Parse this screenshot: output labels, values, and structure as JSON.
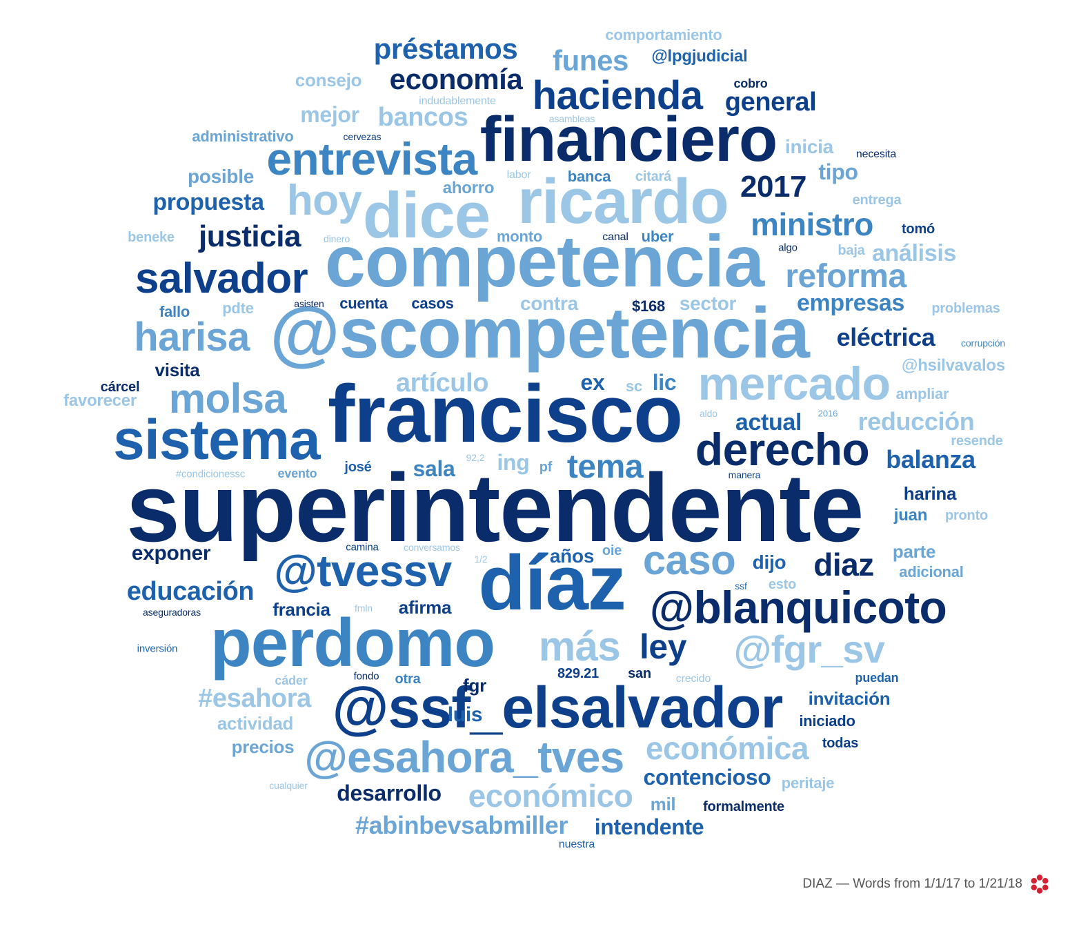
{
  "caption": "DIAZ — Words from 1/1/17 to 1/21/18",
  "logo_icon": "red-flower-logo-icon",
  "colors": {
    "navy": "#0a2c6b",
    "dark_blue": "#0d3f8a",
    "blue": "#1e62ad",
    "mid_blue": "#3d84c3",
    "light_blue": "#6aa5d6",
    "pale_blue": "#9cc6e6",
    "logo_red": "#d42030"
  },
  "words": [
    {
      "text": "superintendente",
      "weight": 10,
      "shade": "navy"
    },
    {
      "text": "francisco",
      "weight": 9,
      "shade": "dark_blue"
    },
    {
      "text": "@scompetencia",
      "weight": 9,
      "shade": "light_blue"
    },
    {
      "text": "competencia",
      "weight": 9,
      "shade": "light_blue"
    },
    {
      "text": "díaz",
      "weight": 9,
      "shade": "blue"
    },
    {
      "text": "perdomo",
      "weight": 8,
      "shade": "mid_blue"
    },
    {
      "text": "@ssf_elsalvador",
      "weight": 8,
      "shade": "dark_blue"
    },
    {
      "text": "financiero",
      "weight": 8,
      "shade": "navy"
    },
    {
      "text": "ricardo",
      "weight": 8,
      "shade": "pale_blue"
    },
    {
      "text": "dice",
      "weight": 8,
      "shade": "pale_blue"
    },
    {
      "text": "sistema",
      "weight": 7,
      "shade": "blue"
    },
    {
      "text": "mercado",
      "weight": 6,
      "shade": "pale_blue"
    },
    {
      "text": "@blanquicoto",
      "weight": 6,
      "shade": "navy"
    },
    {
      "text": "@tvessv",
      "weight": 6,
      "shade": "blue"
    },
    {
      "text": "@esahora_tves",
      "weight": 6,
      "shade": "light_blue"
    },
    {
      "text": "entrevista",
      "weight": 6,
      "shade": "mid_blue"
    },
    {
      "text": "derecho",
      "weight": 6,
      "shade": "navy"
    },
    {
      "text": "salvador",
      "weight": 6,
      "shade": "dark_blue"
    },
    {
      "text": "hacienda",
      "weight": 5,
      "shade": "dark_blue"
    },
    {
      "text": "harisa",
      "weight": 5,
      "shade": "light_blue"
    },
    {
      "text": "molsa",
      "weight": 5,
      "shade": "light_blue"
    },
    {
      "text": "hoy",
      "weight": 5,
      "shade": "pale_blue"
    },
    {
      "text": "caso",
      "weight": 5,
      "shade": "light_blue"
    },
    {
      "text": "más",
      "weight": 5,
      "shade": "pale_blue"
    },
    {
      "text": "@fgr_sv",
      "weight": 5,
      "shade": "pale_blue"
    },
    {
      "text": "ley",
      "weight": 5,
      "shade": "dark_blue"
    },
    {
      "text": "económica",
      "weight": 4,
      "shade": "pale_blue"
    },
    {
      "text": "económico",
      "weight": 4,
      "shade": "pale_blue"
    },
    {
      "text": "reforma",
      "weight": 4,
      "shade": "light_blue"
    },
    {
      "text": "ministro",
      "weight": 4,
      "shade": "mid_blue"
    },
    {
      "text": "diaz",
      "weight": 4,
      "shade": "navy"
    },
    {
      "text": "2017",
      "weight": 4,
      "shade": "navy"
    },
    {
      "text": "tema",
      "weight": 4,
      "shade": "mid_blue"
    },
    {
      "text": "préstamos",
      "weight": 4,
      "shade": "blue"
    },
    {
      "text": "economía",
      "weight": 4,
      "shade": "navy"
    },
    {
      "text": "justicia",
      "weight": 4,
      "shade": "navy"
    },
    {
      "text": "#esahora",
      "weight": 3,
      "shade": "pale_blue"
    },
    {
      "text": "#abinbevsabmiller",
      "weight": 3,
      "shade": "light_blue"
    },
    {
      "text": "funes",
      "weight": 3,
      "shade": "light_blue"
    },
    {
      "text": "educación",
      "weight": 3,
      "shade": "blue"
    },
    {
      "text": "artículo",
      "weight": 3,
      "shade": "pale_blue"
    },
    {
      "text": "bancos",
      "weight": 3,
      "shade": "pale_blue"
    },
    {
      "text": "general",
      "weight": 3,
      "shade": "dark_blue"
    },
    {
      "text": "balanza",
      "weight": 3,
      "shade": "blue"
    },
    {
      "text": "reducción",
      "weight": 3,
      "shade": "pale_blue"
    },
    {
      "text": "eléctrica",
      "weight": 3,
      "shade": "dark_blue"
    },
    {
      "text": "empresas",
      "weight": 3,
      "shade": "mid_blue"
    },
    {
      "text": "desarrollo",
      "weight": 3,
      "shade": "navy"
    },
    {
      "text": "contencioso",
      "weight": 3,
      "shade": "blue"
    },
    {
      "text": "intendente",
      "weight": 3,
      "shade": "blue"
    },
    {
      "text": "propuesta",
      "weight": 3,
      "shade": "blue"
    },
    {
      "text": "exponer",
      "weight": 2,
      "shade": "navy"
    },
    {
      "text": "actual",
      "weight": 2,
      "shade": "blue"
    },
    {
      "text": "análisis",
      "weight": 2,
      "shade": "pale_blue"
    },
    {
      "text": "mejor",
      "weight": 2,
      "shade": "pale_blue"
    },
    {
      "text": "tipo",
      "weight": 2,
      "shade": "light_blue"
    },
    {
      "text": "sala",
      "weight": 2,
      "shade": "mid_blue"
    },
    {
      "text": "ex",
      "weight": 2,
      "shade": "blue"
    },
    {
      "text": "lic",
      "weight": 2,
      "shade": "mid_blue"
    },
    {
      "text": "ing",
      "weight": 2,
      "shade": "pale_blue"
    },
    {
      "text": "años",
      "weight": 2,
      "shade": "blue"
    },
    {
      "text": "dijo",
      "weight": 2,
      "shade": "blue"
    },
    {
      "text": "parte",
      "weight": 2,
      "shade": "light_blue"
    },
    {
      "text": "contra",
      "weight": 2,
      "shade": "pale_blue"
    },
    {
      "text": "sector",
      "weight": 2,
      "shade": "pale_blue"
    },
    {
      "text": "posible",
      "weight": 2,
      "shade": "light_blue"
    },
    {
      "text": "consejo",
      "weight": 2,
      "shade": "pale_blue"
    },
    {
      "text": "actividad",
      "weight": 2,
      "shade": "pale_blue"
    },
    {
      "text": "precios",
      "weight": 2,
      "shade": "light_blue"
    },
    {
      "text": "afirma",
      "weight": 2,
      "shade": "dark_blue"
    },
    {
      "text": "francia",
      "weight": 2,
      "shade": "dark_blue"
    },
    {
      "text": "invitación",
      "weight": 2,
      "shade": "blue"
    },
    {
      "text": "inicia",
      "weight": 2,
      "shade": "pale_blue"
    },
    {
      "text": "harina",
      "weight": 2,
      "shade": "dark_blue"
    },
    {
      "text": "mil",
      "weight": 2,
      "shade": "light_blue"
    },
    {
      "text": "visita",
      "weight": 2,
      "shade": "navy"
    },
    {
      "text": "@hsilvavalos",
      "weight": 2,
      "shade": "pale_blue"
    },
    {
      "text": "favorecer",
      "weight": 2,
      "shade": "pale_blue"
    },
    {
      "text": "ahorro",
      "weight": 2,
      "shade": "light_blue"
    },
    {
      "text": "luis",
      "weight": 2,
      "shade": "blue"
    },
    {
      "text": "juan",
      "weight": 2,
      "shade": "mid_blue"
    },
    {
      "text": "fgr",
      "weight": 2,
      "shade": "navy"
    },
    {
      "text": "adicional",
      "weight": 1,
      "shade": "light_blue"
    },
    {
      "text": "ampliar",
      "weight": 1,
      "shade": "pale_blue"
    },
    {
      "text": "resende",
      "weight": 1,
      "shade": "pale_blue"
    },
    {
      "text": "@lpgjudicial",
      "weight": 1,
      "shade": "blue"
    },
    {
      "text": "comportamiento",
      "weight": 1,
      "shade": "pale_blue"
    },
    {
      "text": "administrativo",
      "weight": 1,
      "shade": "light_blue"
    },
    {
      "text": "monto",
      "weight": 1,
      "shade": "light_blue"
    },
    {
      "text": "banca",
      "weight": 1,
      "shade": "mid_blue"
    },
    {
      "text": "uber",
      "weight": 1,
      "shade": "mid_blue"
    },
    {
      "text": "cuenta",
      "weight": 1,
      "shade": "dark_blue"
    },
    {
      "text": "casos",
      "weight": 1,
      "shade": "dark_blue"
    },
    {
      "text": "$168",
      "weight": 1,
      "shade": "navy"
    },
    {
      "text": "fallo",
      "weight": 1,
      "shade": "mid_blue"
    },
    {
      "text": "pdte",
      "weight": 1,
      "shade": "pale_blue"
    },
    {
      "text": "cárcel",
      "weight": 1,
      "shade": "navy"
    },
    {
      "text": "josé",
      "weight": 1,
      "shade": "blue"
    },
    {
      "text": "oie",
      "weight": 1,
      "shade": "light_blue"
    },
    {
      "text": "sc",
      "weight": 1,
      "shade": "pale_blue"
    },
    {
      "text": "pf",
      "weight": 1,
      "shade": "light_blue"
    },
    {
      "text": "829.21",
      "weight": 1,
      "shade": "dark_blue"
    },
    {
      "text": "san",
      "weight": 1,
      "shade": "navy"
    },
    {
      "text": "otra",
      "weight": 1,
      "shade": "mid_blue"
    },
    {
      "text": "iniciado",
      "weight": 1,
      "shade": "dark_blue"
    },
    {
      "text": "todas",
      "weight": 1,
      "shade": "dark_blue"
    },
    {
      "text": "formalmente",
      "weight": 1,
      "shade": "navy"
    },
    {
      "text": "peritaje",
      "weight": 1,
      "shade": "pale_blue"
    },
    {
      "text": "tomó",
      "weight": 1,
      "shade": "dark_blue"
    },
    {
      "text": "entrega",
      "weight": 1,
      "shade": "pale_blue"
    },
    {
      "text": "problemas",
      "weight": 1,
      "shade": "pale_blue"
    },
    {
      "text": "cobro",
      "weight": 1,
      "shade": "navy"
    },
    {
      "text": "esto",
      "weight": 1,
      "shade": "pale_blue"
    },
    {
      "text": "pronto",
      "weight": 1,
      "shade": "pale_blue"
    },
    {
      "text": "baja",
      "weight": 1,
      "shade": "pale_blue"
    },
    {
      "text": "cáder",
      "weight": 1,
      "shade": "pale_blue"
    },
    {
      "text": "puedan",
      "weight": 1,
      "shade": "blue"
    },
    {
      "text": "evento",
      "weight": 1,
      "shade": "light_blue"
    },
    {
      "text": "beneke",
      "weight": 1,
      "shade": "pale_blue"
    },
    {
      "text": "citará",
      "weight": 1,
      "shade": "pale_blue"
    },
    {
      "text": "labor",
      "weight": 1,
      "shade": "pale_blue"
    },
    {
      "text": "camina",
      "weight": 0,
      "shade": "dark_blue"
    },
    {
      "text": "conversamos",
      "weight": 0,
      "shade": "pale_blue"
    },
    {
      "text": "1/2",
      "weight": 0,
      "shade": "pale_blue"
    },
    {
      "text": "aldo",
      "weight": 0,
      "shade": "pale_blue"
    },
    {
      "text": "2016",
      "weight": 0,
      "shade": "light_blue"
    },
    {
      "text": "92,2",
      "weight": 0,
      "shade": "pale_blue"
    },
    {
      "text": "manera",
      "weight": 0,
      "shade": "dark_blue"
    },
    {
      "text": "#condicionessc",
      "weight": 0,
      "shade": "pale_blue"
    },
    {
      "text": "ssf",
      "weight": 0,
      "shade": "blue"
    },
    {
      "text": "fmln",
      "weight": 0,
      "shade": "pale_blue"
    },
    {
      "text": "aseguradoras",
      "weight": 0,
      "shade": "navy"
    },
    {
      "text": "inversión",
      "weight": 0,
      "shade": "blue"
    },
    {
      "text": "fondo",
      "weight": 0,
      "shade": "navy"
    },
    {
      "text": "crecido",
      "weight": 0,
      "shade": "pale_blue"
    },
    {
      "text": "cualquier",
      "weight": 0,
      "shade": "pale_blue"
    },
    {
      "text": "nuestra",
      "weight": 0,
      "shade": "blue"
    },
    {
      "text": "asisten",
      "weight": 0,
      "shade": "navy"
    },
    {
      "text": "canal",
      "weight": 0,
      "shade": "navy"
    },
    {
      "text": "algo",
      "weight": 0,
      "shade": "navy"
    },
    {
      "text": "dinero",
      "weight": 0,
      "shade": "pale_blue"
    },
    {
      "text": "cervezas",
      "weight": 0,
      "shade": "dark_blue"
    },
    {
      "text": "asambleas",
      "weight": 0,
      "shade": "pale_blue"
    },
    {
      "text": "indudablemente",
      "weight": 0,
      "shade": "pale_blue"
    },
    {
      "text": "necesita",
      "weight": 0,
      "shade": "navy"
    },
    {
      "text": "corrupción",
      "weight": 0,
      "shade": "mid_blue"
    }
  ]
}
